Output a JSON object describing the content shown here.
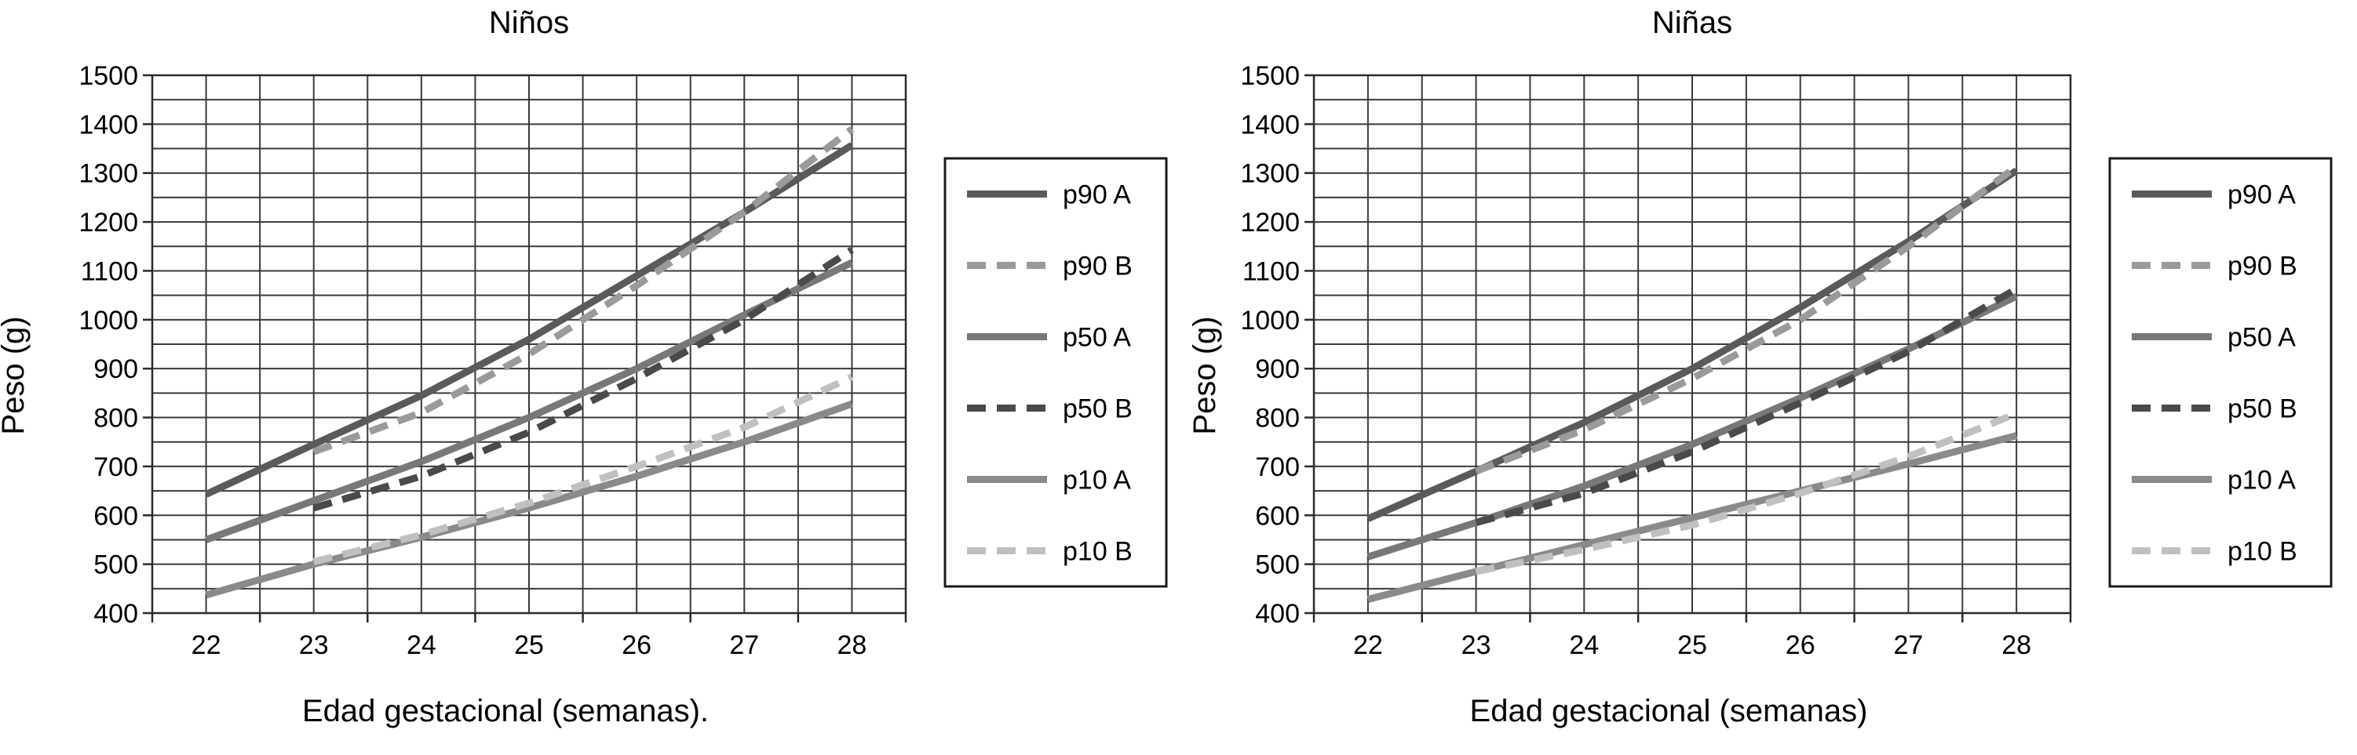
{
  "chart_data": [
    {
      "type": "line",
      "title": "Niños",
      "xlabel": "Edad gestacional (semanas).",
      "ylabel": "Peso (g)",
      "xlim": [
        21.5,
        28.5
      ],
      "ylim": [
        400,
        1500
      ],
      "x_ticks": [
        22,
        23,
        24,
        25,
        26,
        27,
        28
      ],
      "y_ticks": [
        400,
        500,
        600,
        700,
        800,
        900,
        1000,
        1100,
        1200,
        1300,
        1400,
        1500
      ],
      "grid": true,
      "legend_position": "right",
      "series": [
        {
          "name": "p90 A",
          "color": "#5a5a5a",
          "dash": "solid",
          "x": [
            22,
            23,
            24,
            25,
            26,
            27,
            28
          ],
          "y": [
            643,
            745,
            845,
            960,
            1090,
            1220,
            1357
          ]
        },
        {
          "name": "p90 B",
          "color": "#9a9a9a",
          "dash": "dashed",
          "x": [
            23,
            24,
            25,
            26,
            27,
            28
          ],
          "y": [
            730,
            810,
            930,
            1070,
            1220,
            1390
          ]
        },
        {
          "name": "p50 A",
          "color": "#787878",
          "dash": "solid",
          "x": [
            22,
            23,
            24,
            25,
            26,
            27,
            28
          ],
          "y": [
            550,
            630,
            710,
            800,
            900,
            1010,
            1117
          ]
        },
        {
          "name": "p50 B",
          "color": "#4a4a4a",
          "dash": "dashed",
          "x": [
            23,
            24,
            25,
            26,
            27,
            28
          ],
          "y": [
            615,
            680,
            770,
            880,
            1000,
            1143
          ]
        },
        {
          "name": "p10 A",
          "color": "#8a8a8a",
          "dash": "solid",
          "x": [
            22,
            23,
            24,
            25,
            26,
            27,
            28
          ],
          "y": [
            437,
            500,
            555,
            615,
            680,
            750,
            828
          ]
        },
        {
          "name": "p10 B",
          "color": "#c0c0c0",
          "dash": "dashed",
          "x": [
            23,
            24,
            25,
            26,
            27,
            28
          ],
          "y": [
            505,
            560,
            625,
            700,
            780,
            883
          ]
        }
      ]
    },
    {
      "type": "line",
      "title": "Niñas",
      "xlabel": "Edad gestacional (semanas)",
      "ylabel": "Peso (g)",
      "xlim": [
        21.5,
        28.5
      ],
      "ylim": [
        400,
        1500
      ],
      "x_ticks": [
        22,
        23,
        24,
        25,
        26,
        27,
        28
      ],
      "y_ticks": [
        400,
        500,
        600,
        700,
        800,
        900,
        1000,
        1100,
        1200,
        1300,
        1400,
        1500
      ],
      "grid": true,
      "legend_position": "right",
      "series": [
        {
          "name": "p90 A",
          "color": "#5a5a5a",
          "dash": "solid",
          "x": [
            22,
            23,
            24,
            25,
            26,
            27,
            28
          ],
          "y": [
            593,
            690,
            790,
            900,
            1025,
            1160,
            1305
          ]
        },
        {
          "name": "p90 B",
          "color": "#9a9a9a",
          "dash": "dashed",
          "x": [
            23,
            24,
            25,
            26,
            27,
            28
          ],
          "y": [
            690,
            775,
            880,
            1000,
            1150,
            1313
          ]
        },
        {
          "name": "p50 A",
          "color": "#787878",
          "dash": "solid",
          "x": [
            22,
            23,
            24,
            25,
            26,
            27,
            28
          ],
          "y": [
            515,
            585,
            660,
            745,
            840,
            940,
            1048
          ]
        },
        {
          "name": "p50 B",
          "color": "#4a4a4a",
          "dash": "dashed",
          "x": [
            23,
            24,
            25,
            26,
            27,
            28
          ],
          "y": [
            585,
            645,
            730,
            830,
            935,
            1063
          ]
        },
        {
          "name": "p10 A",
          "color": "#8a8a8a",
          "dash": "solid",
          "x": [
            22,
            23,
            24,
            25,
            26,
            27,
            28
          ],
          "y": [
            428,
            485,
            540,
            595,
            650,
            705,
            763
          ]
        },
        {
          "name": "p10 B",
          "color": "#c0c0c0",
          "dash": "dashed",
          "x": [
            23,
            24,
            25,
            26,
            27,
            28
          ],
          "y": [
            485,
            530,
            580,
            645,
            720,
            808
          ]
        }
      ]
    }
  ]
}
